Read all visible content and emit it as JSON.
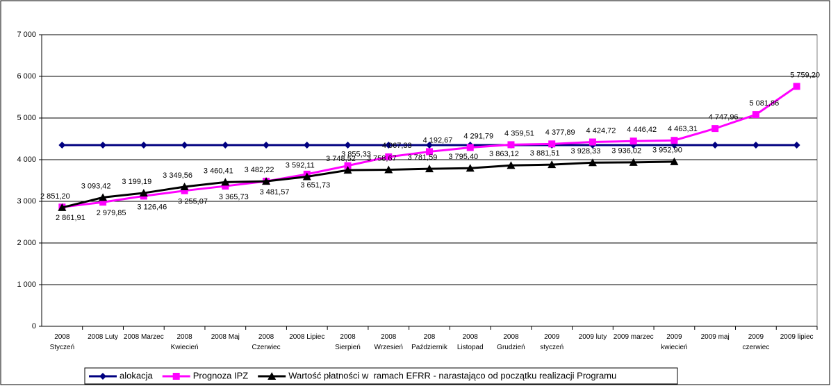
{
  "chart_data": {
    "type": "line",
    "categories": [
      "2008 Styczeń",
      "2008 Luty",
      "2008 Marzec",
      "2008 Kwiecień",
      "2008 Maj",
      "2008 Czerwiec",
      "2008 Lipiec",
      "2008 Sierpień",
      "2008 Wrzesień",
      "208 Październik",
      "2008 Listopad",
      "2008 Grudzień",
      "2009 styczeń",
      "2009 luty",
      "2009 marzec",
      "2009 kwiecień",
      "2009 maj",
      "2009 czerwiec",
      "2009 lipiec"
    ],
    "series": [
      {
        "name": "alokacja",
        "color": "#000080",
        "marker": "diamond",
        "values": [
          4350,
          4350,
          4350,
          4350,
          4350,
          4350,
          4350,
          4350,
          4350,
          4350,
          4350,
          4350,
          4350,
          4350,
          4350,
          4350,
          4350,
          4350,
          4350
        ]
      },
      {
        "name": "Prognoza IPZ",
        "color": "#ff00ff",
        "marker": "square",
        "values": [
          2861.91,
          2979.85,
          3126.46,
          3255.07,
          3365.73,
          3481.57,
          3651.73,
          3855.33,
          4067.33,
          4192.67,
          4291.79,
          4359.51,
          4377.89,
          4424.72,
          4446.42,
          4463.31,
          4747.96,
          5081.86,
          5759.2
        ],
        "value_labels": [
          "2 861,91",
          "2 979,85",
          "3 126,46",
          "3 255,07",
          "3 365,73",
          "3 481,57",
          "3 651,73",
          "3 855,33",
          "4 067,33",
          "4 192,67",
          "4 291,79",
          "4 359,51",
          "4 377,89",
          "4 424,72",
          "4 446,42",
          "4 463,31",
          "4 747,96",
          "5 081,86",
          "5 759,20"
        ]
      },
      {
        "name": "Wartość płatności w  ramach EFRR - narastająco od początku realizacji Programu",
        "color": "#000000",
        "marker": "triangle",
        "values": [
          2851.2,
          3093.42,
          3199.19,
          3349.56,
          3460.41,
          3482.22,
          3592.11,
          3748.52,
          3758.67,
          3781.59,
          3795.4,
          3863.12,
          3881.51,
          3928.33,
          3936.02,
          3952.9,
          null,
          null,
          null
        ],
        "value_labels": [
          "2 851,20",
          "3 093,42",
          "3 199,19",
          "3 349,56",
          "3 460,41",
          "3 482,22",
          "3 592,11",
          "3 748,52",
          "3 758,67",
          "3 781,59",
          "3 795,40",
          "3 863,12",
          "3 881,51",
          "3 928,33",
          "3 936,02",
          "3 952,90",
          null,
          null,
          null
        ]
      }
    ],
    "ylim": [
      0,
      7000
    ],
    "yticks": [
      0,
      {
        "value": 1000,
        "label": "1 000"
      },
      {
        "value": 2000,
        "label": "2 000"
      },
      {
        "value": 3000,
        "label": "3 000"
      },
      {
        "value": 4000,
        "label": "4 000"
      },
      {
        "value": 5000,
        "label": "5 000"
      },
      {
        "value": 6000,
        "label": "6 000"
      },
      {
        "value": 7000,
        "label": "7 000"
      }
    ],
    "grid": true,
    "legend": "bottom"
  }
}
